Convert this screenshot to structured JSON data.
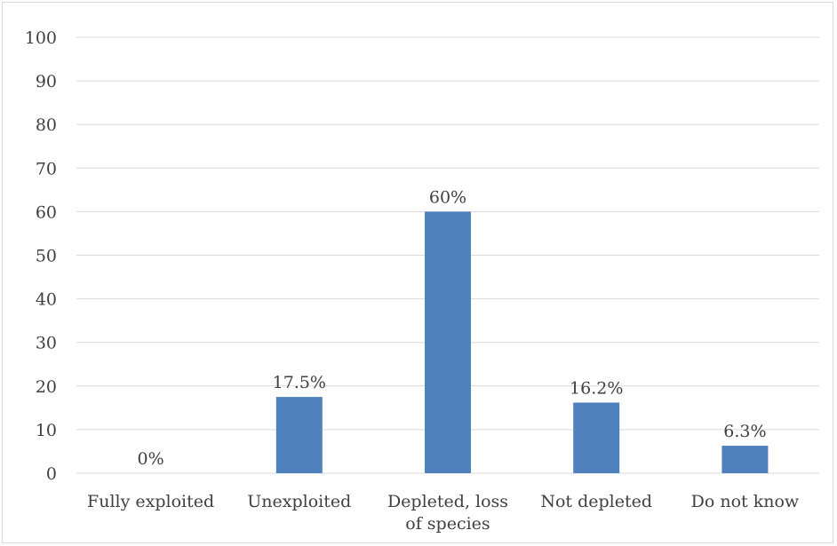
{
  "chart_data": {
    "type": "bar",
    "categories": [
      "Fully exploited",
      "Unexploited",
      "Depleted, loss of species",
      "Not depleted",
      "Do not know"
    ],
    "category_lines": [
      [
        "Fully exploited"
      ],
      [
        "Unexploited"
      ],
      [
        "Depleted, loss",
        "of species"
      ],
      [
        "Not depleted"
      ],
      [
        "Do not know"
      ]
    ],
    "values": [
      0,
      17.5,
      60,
      16.2,
      6.3
    ],
    "data_labels": [
      "0%",
      "17.5%",
      "60%",
      "16.2%",
      "6.3%"
    ],
    "ylim": [
      0,
      100
    ],
    "yticks": [
      0,
      10,
      20,
      30,
      40,
      50,
      60,
      70,
      80,
      90,
      100
    ],
    "title": "",
    "xlabel": "",
    "ylabel": "",
    "grid": true,
    "legend": "none",
    "colors": {
      "bar": "#4f81bd",
      "grid": "#d9d9d9",
      "text": "#404040"
    }
  }
}
